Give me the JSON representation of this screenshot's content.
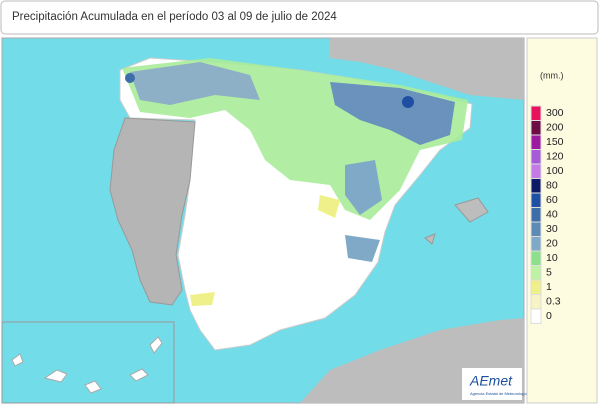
{
  "header": {
    "title": "Precipitación Acumulada en el período 03 al 09 de julio de 2024"
  },
  "legend": {
    "unit": "(mm.)",
    "items": [
      {
        "label": "300",
        "color": "#e8125c"
      },
      {
        "label": "200",
        "color": "#6e0c46"
      },
      {
        "label": "150",
        "color": "#9c1aa0"
      },
      {
        "label": "120",
        "color": "#a65cd8"
      },
      {
        "label": "100",
        "color": "#c47ae6"
      },
      {
        "label": "80",
        "color": "#0c1a66"
      },
      {
        "label": "60",
        "color": "#1f4fa2"
      },
      {
        "label": "40",
        "color": "#3d6ea8"
      },
      {
        "label": "30",
        "color": "#5c8bb8"
      },
      {
        "label": "20",
        "color": "#7fa9c6"
      },
      {
        "label": "10",
        "color": "#8fe08c"
      },
      {
        "label": "5",
        "color": "#bdf2a4"
      },
      {
        "label": "1",
        "color": "#f0f08a"
      },
      {
        "label": "0.3",
        "color": "#f7f3c4"
      },
      {
        "label": "0",
        "color": "#ffffff"
      }
    ]
  },
  "footer": {
    "logo": "AEmet",
    "credit": "Agencia Estatal de Meteorología"
  }
}
